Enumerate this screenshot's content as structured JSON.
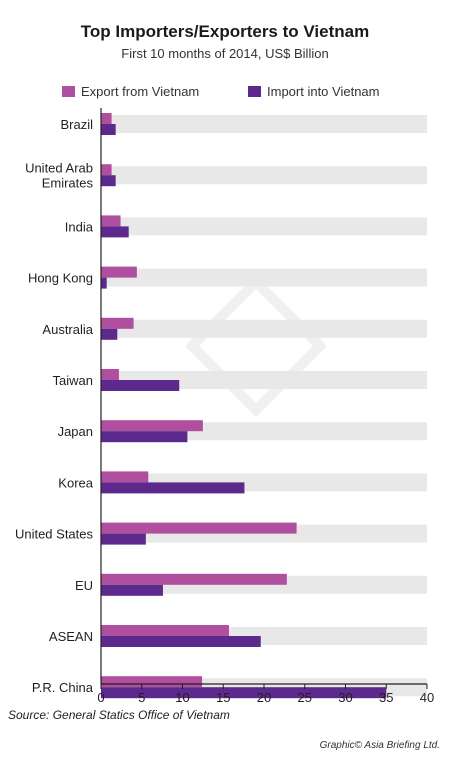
{
  "title": "Top Importers/Exporters to Vietnam",
  "subtitle": "First 10 months of 2014, US$ Billion",
  "source": "Source: General Statics Office of Vietnam",
  "credit": "Graphic© Asia Briefing Ltd.",
  "colors": {
    "export": "#b04f9e",
    "import": "#5b2a8c",
    "track": "#e8e8e8"
  },
  "chart_data": {
    "type": "bar",
    "orientation": "horizontal",
    "categories": [
      "Brazil",
      "United Arab Emirates",
      "India",
      "Hong Kong",
      "Australia",
      "Taiwan",
      "Japan",
      "Korea",
      "United States",
      "EU",
      "ASEAN",
      "P.R. China"
    ],
    "category_lines": [
      [
        "Brazil"
      ],
      [
        "United Arab",
        "Emirates"
      ],
      [
        "India"
      ],
      [
        "Hong Kong"
      ],
      [
        "Australia"
      ],
      [
        "Taiwan"
      ],
      [
        "Japan"
      ],
      [
        "Korea"
      ],
      [
        "United States"
      ],
      [
        "EU"
      ],
      [
        "ASEAN"
      ],
      [
        "P.R. China"
      ]
    ],
    "series": [
      {
        "name": "Export from Vietnam",
        "values": [
          1.3,
          1.3,
          2.4,
          4.4,
          4.0,
          2.2,
          12.5,
          5.8,
          24.0,
          22.8,
          15.7,
          12.4
        ]
      },
      {
        "name": "Import into Vietnam",
        "values": [
          1.8,
          1.8,
          3.4,
          0.7,
          2.0,
          9.6,
          10.6,
          17.6,
          5.5,
          7.6,
          19.6,
          35.0
        ]
      }
    ],
    "xlim": [
      0,
      40
    ],
    "xticks": [
      0,
      5,
      10,
      15,
      20,
      25,
      30,
      35,
      40
    ],
    "legend_position": "top"
  }
}
